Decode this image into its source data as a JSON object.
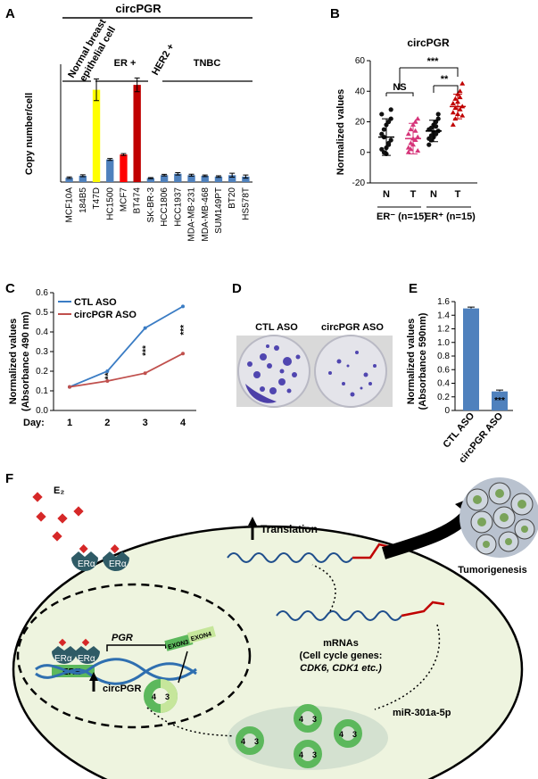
{
  "panel_labels": {
    "a": "A",
    "b": "B",
    "c": "C",
    "d": "D",
    "e": "E",
    "f": "F"
  },
  "colors": {
    "blue": "#4f81bd",
    "yellow": "#ffff00",
    "red_bar": "#ff0000",
    "dark_red": "#c00000",
    "pink": "#d6357a",
    "ctl_line": "#3a7cc4",
    "circ_line": "#c0504d",
    "ellipse": "#eef4df",
    "ring_dark": "#5cb85c",
    "ring_light": "#c6e69b",
    "ra": "#d62828"
  },
  "panel_a": {
    "header": "circPGR",
    "groups": [
      "Normal breast",
      "epithelial cell",
      "ER +",
      "HER2 +",
      "TNBC"
    ],
    "ylabel": "Copy number/cell"
  },
  "panel_b": {
    "title": "circPGR",
    "sig": [
      "NS",
      "***",
      "**"
    ],
    "xgroups": [
      "ER⁻ (n=15)",
      "ER⁺ (n=15)"
    ]
  },
  "panel_c": {
    "legend": [
      "CTL ASO",
      "circPGR ASO"
    ],
    "xlabel_prefix": "Day:",
    "sig": [
      "**",
      "***",
      "***"
    ]
  },
  "panel_d": {
    "labels": [
      "CTL ASO",
      "circPGR ASO"
    ]
  },
  "panel_e": {
    "sig": "***"
  },
  "panel_f": {
    "e2": "E₂",
    "era": "ERα",
    "ere": "ERE",
    "pgr": "PGR",
    "exon3": "EXON3",
    "exon4": "EXON4",
    "circpgr": "circPGR",
    "translation": "Translation",
    "tumor": "Tumorigenesis",
    "mrnas": "mRNAs",
    "mrnas2": "(Cell cycle genes:",
    "mrnas3": "CDK6, CDK1 etc.)",
    "mir": "miR-301a-5p",
    "ring4": "4",
    "ring3": "3"
  },
  "chart_data": [
    {
      "id": "A",
      "type": "bar",
      "categories": [
        "MCF10A",
        "184B5",
        "T47D",
        "HC1500",
        "MCF7",
        "BT474",
        "SK-BR-3",
        "HCC1806",
        "HCC1937",
        "MDA-MB-231",
        "MDA-MB-468",
        "SUM149PT",
        "BT20",
        "HS578T"
      ],
      "values": [
        22,
        32,
        470,
        115,
        140,
        495,
        20,
        35,
        42,
        35,
        32,
        28,
        35,
        28
      ],
      "errors": [
        4,
        5,
        55,
        5,
        5,
        35,
        3,
        4,
        6,
        5,
        4,
        4,
        10,
        8
      ],
      "colors": [
        "blue",
        "blue",
        "yellow",
        "blue",
        "red_bar",
        "dark_red",
        "blue",
        "blue",
        "blue",
        "blue",
        "blue",
        "blue",
        "blue",
        "blue"
      ],
      "ylabel": "Copy number/cell",
      "ylim": [
        0,
        600
      ]
    },
    {
      "id": "B",
      "type": "scatter",
      "ylabel": "Normalized values",
      "yticks": [
        -20,
        0,
        20,
        40,
        60
      ],
      "ylim": [
        -20,
        60
      ],
      "categories": [
        "N",
        "T",
        "N",
        "T"
      ],
      "groups": [
        {
          "name": "N",
          "mean": 10,
          "sd": 12,
          "points": [
            2,
            0,
            -1,
            5,
            8,
            12,
            15,
            18,
            20,
            22,
            25,
            10,
            3,
            6,
            28
          ]
        },
        {
          "name": "T",
          "mean": 9,
          "sd": 10,
          "points": [
            0,
            2,
            5,
            8,
            10,
            12,
            15,
            18,
            20,
            1,
            3,
            6,
            9,
            14,
            22
          ]
        },
        {
          "name": "N",
          "mean": 14,
          "sd": 7,
          "points": [
            5,
            8,
            10,
            12,
            14,
            15,
            16,
            18,
            20,
            22,
            9,
            11,
            13,
            17,
            25
          ]
        },
        {
          "name": "T",
          "mean": 30,
          "sd": 8,
          "points": [
            18,
            22,
            25,
            28,
            30,
            32,
            35,
            38,
            40,
            45,
            26,
            29,
            33,
            36,
            24
          ]
        }
      ]
    },
    {
      "id": "C",
      "type": "line",
      "x": [
        1,
        2,
        3,
        4
      ],
      "ylabel": "Normalized values\n(Absorbance 490 nm)",
      "ylim": [
        0,
        0.6
      ],
      "yticks": [
        0,
        0.1,
        0.2,
        0.3,
        0.4,
        0.5,
        0.6
      ],
      "series": [
        {
          "name": "CTL ASO",
          "values": [
            0.12,
            0.2,
            0.42,
            0.53
          ]
        },
        {
          "name": "circPGR ASO",
          "values": [
            0.12,
            0.15,
            0.19,
            0.29
          ]
        }
      ]
    },
    {
      "id": "E",
      "type": "bar",
      "categories": [
        "CTL ASO",
        "circPGR ASO"
      ],
      "values": [
        1.5,
        0.28
      ],
      "errors": [
        0.02,
        0.02
      ],
      "ylabel": "Normalized values\n(Absorbance 590nm)",
      "ylim": [
        0,
        1.6
      ],
      "yticks": [
        0,
        0.2,
        0.4,
        0.6,
        0.8,
        1.0,
        1.2,
        1.4,
        1.6
      ]
    }
  ]
}
